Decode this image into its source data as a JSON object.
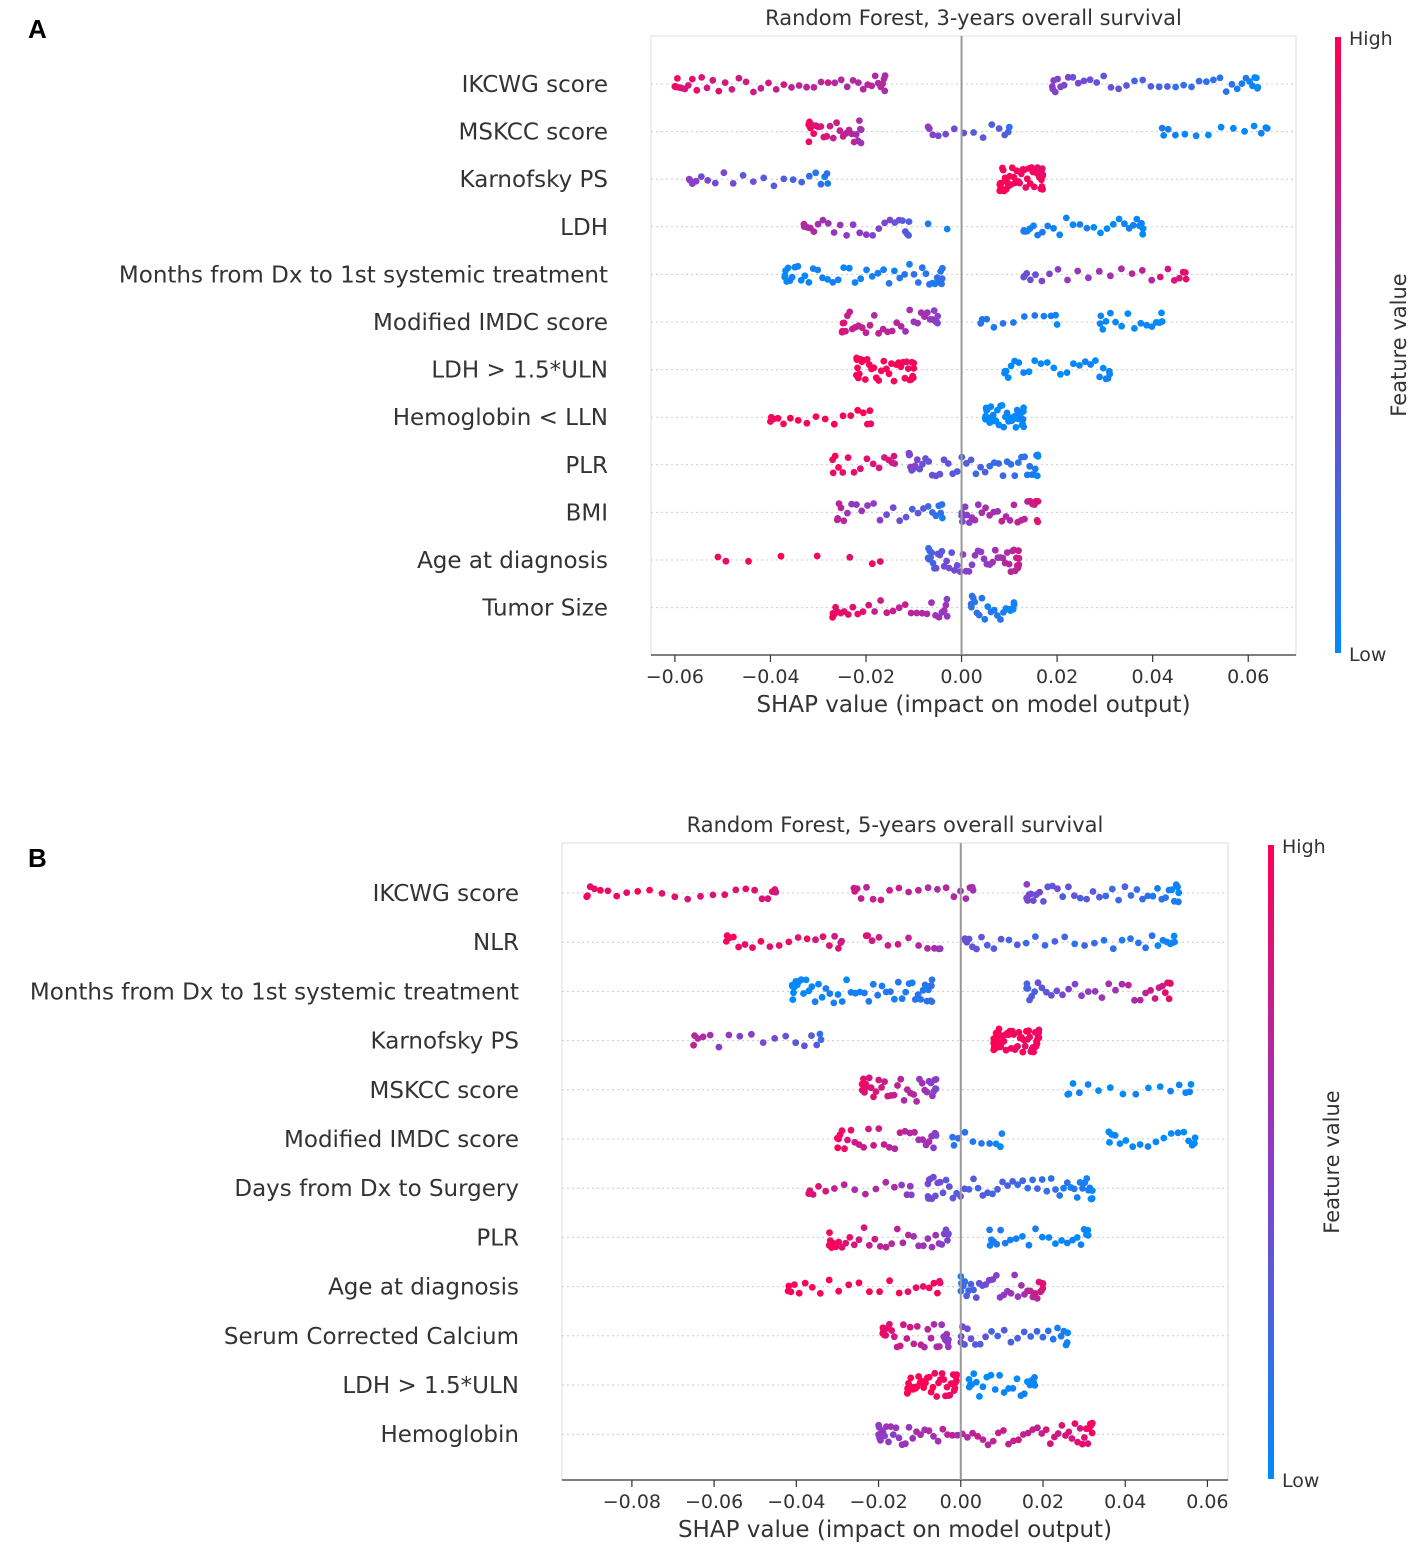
{
  "panels": [
    {
      "letter": "A"
    },
    {
      "letter": "B"
    }
  ],
  "colors": {
    "high": "#ff0052",
    "mid": "#8a3ec8",
    "low": "#008bfb"
  },
  "chart_data": [
    {
      "type": "scatter",
      "subtype": "shap-beeswarm",
      "title": "Random Forest, 3-years overall survival",
      "xlabel": "SHAP value (impact on model output)",
      "xlim": [
        -0.065,
        0.07
      ],
      "xticks": [
        -0.06,
        -0.04,
        -0.02,
        0.0,
        0.02,
        0.04,
        0.06
      ],
      "xtick_labels": [
        "−0.06",
        "−0.04",
        "−0.02",
        "0.00",
        "0.02",
        "0.04",
        "0.06"
      ],
      "colorbar": {
        "label": "Feature value",
        "high": "High",
        "low": "Low"
      },
      "features": [
        {
          "name": "IKCWG score",
          "groups": [
            {
              "min": -0.06,
              "max": -0.016,
              "n": 44,
              "c0": 0.9,
              "c1": 0.62
            },
            {
              "min": 0.019,
              "max": 0.062,
              "n": 40,
              "c0": 0.5,
              "c1": 0.02
            }
          ]
        },
        {
          "name": "MSKCC score",
          "groups": [
            {
              "min": -0.032,
              "max": -0.021,
              "n": 26,
              "c0": 0.95,
              "c1": 0.6
            },
            {
              "min": -0.007,
              "max": 0.01,
              "n": 14,
              "c0": 0.48,
              "c1": 0.2
            },
            {
              "min": 0.042,
              "max": 0.064,
              "n": 14,
              "c0": 0.05,
              "c1": 0.0
            }
          ]
        },
        {
          "name": "Karnofsky PS",
          "groups": [
            {
              "min": -0.057,
              "max": -0.028,
              "n": 22,
              "c0": 0.55,
              "c1": 0.1
            },
            {
              "min": 0.008,
              "max": 0.017,
              "n": 45,
              "c0": 1.0,
              "c1": 0.93
            }
          ]
        },
        {
          "name": "LDH",
          "groups": [
            {
              "min": -0.033,
              "max": -0.011,
              "n": 26,
              "c0": 0.7,
              "c1": 0.3
            },
            {
              "min": -0.007,
              "max": -0.003,
              "n": 2,
              "c0": 0.1,
              "c1": 0.05
            },
            {
              "min": 0.013,
              "max": 0.038,
              "n": 28,
              "c0": 0.12,
              "c1": 0.0
            }
          ]
        },
        {
          "name": "Months from Dx to 1st systemic treatment",
          "groups": [
            {
              "min": -0.037,
              "max": -0.004,
              "n": 44,
              "c0": 0.0,
              "c1": 0.15
            },
            {
              "min": 0.013,
              "max": 0.047,
              "n": 24,
              "c0": 0.3,
              "c1": 0.92
            }
          ]
        },
        {
          "name": "Modified IMDC score",
          "groups": [
            {
              "min": -0.025,
              "max": -0.005,
              "n": 34,
              "c0": 0.85,
              "c1": 0.5
            },
            {
              "min": 0.004,
              "max": 0.02,
              "n": 12,
              "c0": 0.15,
              "c1": 0.05
            },
            {
              "min": 0.029,
              "max": 0.042,
              "n": 16,
              "c0": 0.02,
              "c1": 0.0
            }
          ]
        },
        {
          "name": "LDH > 1.5*ULN",
          "groups": [
            {
              "min": -0.022,
              "max": -0.01,
              "n": 36,
              "c0": 1.0,
              "c1": 0.95
            },
            {
              "min": 0.009,
              "max": 0.031,
              "n": 26,
              "c0": 0.0,
              "c1": 0.02
            }
          ]
        },
        {
          "name": "Hemoglobin < LLN",
          "groups": [
            {
              "min": -0.04,
              "max": -0.019,
              "n": 18,
              "c0": 1.0,
              "c1": 0.95
            },
            {
              "min": 0.005,
              "max": 0.013,
              "n": 38,
              "c0": 0.0,
              "c1": 0.03
            }
          ]
        },
        {
          "name": "PLR",
          "groups": [
            {
              "min": -0.027,
              "max": -0.014,
              "n": 16,
              "c0": 0.95,
              "c1": 0.75
            },
            {
              "min": -0.011,
              "max": 0.016,
              "n": 44,
              "c0": 0.5,
              "c1": 0.05
            }
          ]
        },
        {
          "name": "BMI",
          "groups": [
            {
              "min": -0.026,
              "max": -0.004,
              "n": 26,
              "c0": 0.75,
              "c1": 0.1
            },
            {
              "min": 0.0,
              "max": 0.016,
              "n": 30,
              "c0": 0.45,
              "c1": 0.85
            }
          ]
        },
        {
          "name": "Age at diagnosis",
          "groups": [
            {
              "min": -0.051,
              "max": -0.017,
              "n": 8,
              "c0": 1.0,
              "c1": 0.9
            },
            {
              "min": -0.007,
              "max": 0.012,
              "n": 48,
              "c0": 0.2,
              "c1": 0.8
            }
          ]
        },
        {
          "name": "Tumor Size",
          "groups": [
            {
              "min": -0.027,
              "max": -0.003,
              "n": 30,
              "c0": 1.0,
              "c1": 0.5
            },
            {
              "min": 0.002,
              "max": 0.011,
              "n": 22,
              "c0": 0.2,
              "c1": 0.02
            }
          ]
        }
      ]
    },
    {
      "type": "scatter",
      "subtype": "shap-beeswarm",
      "title": "Random Forest, 5-years overall survival",
      "xlabel": "SHAP value (impact on model output)",
      "xlim": [
        -0.097,
        0.065
      ],
      "xticks": [
        -0.08,
        -0.06,
        -0.04,
        -0.02,
        0.0,
        0.02,
        0.04,
        0.06
      ],
      "xtick_labels": [
        "−0.08",
        "−0.06",
        "−0.04",
        "−0.02",
        "0.00",
        "0.02",
        "0.04",
        "0.06"
      ],
      "colorbar": {
        "label": "Feature value",
        "high": "High",
        "low": "Low"
      },
      "features": [
        {
          "name": "IKCWG score",
          "groups": [
            {
              "min": -0.091,
              "max": -0.045,
              "n": 24,
              "c0": 0.95,
              "c1": 0.85
            },
            {
              "min": -0.026,
              "max": 0.003,
              "n": 20,
              "c0": 0.8,
              "c1": 0.6
            },
            {
              "min": 0.016,
              "max": 0.053,
              "n": 38,
              "c0": 0.5,
              "c1": 0.02
            }
          ]
        },
        {
          "name": "NLR",
          "groups": [
            {
              "min": -0.057,
              "max": -0.029,
              "n": 20,
              "c0": 1.0,
              "c1": 0.8
            },
            {
              "min": -0.023,
              "max": -0.005,
              "n": 12,
              "c0": 0.85,
              "c1": 0.6
            },
            {
              "min": 0.001,
              "max": 0.052,
              "n": 34,
              "c0": 0.4,
              "c1": 0.02
            }
          ]
        },
        {
          "name": "Months from Dx to 1st systemic treatment",
          "groups": [
            {
              "min": -0.041,
              "max": -0.007,
              "n": 50,
              "c0": 0.0,
              "c1": 0.15
            },
            {
              "min": 0.016,
              "max": 0.051,
              "n": 34,
              "c0": 0.2,
              "c1": 0.92
            }
          ]
        },
        {
          "name": "Karnofsky PS",
          "groups": [
            {
              "min": -0.065,
              "max": -0.034,
              "n": 18,
              "c0": 0.7,
              "c1": 0.2
            },
            {
              "min": 0.008,
              "max": 0.019,
              "n": 55,
              "c0": 1.0,
              "c1": 0.92
            }
          ]
        },
        {
          "name": "MSKCC score",
          "groups": [
            {
              "min": -0.024,
              "max": -0.006,
              "n": 36,
              "c0": 0.95,
              "c1": 0.45
            },
            {
              "min": 0.026,
              "max": 0.056,
              "n": 16,
              "c0": 0.05,
              "c1": 0.0
            }
          ]
        },
        {
          "name": "Modified IMDC score",
          "groups": [
            {
              "min": -0.03,
              "max": -0.006,
              "n": 30,
              "c0": 0.95,
              "c1": 0.5
            },
            {
              "min": -0.002,
              "max": 0.01,
              "n": 10,
              "c0": 0.2,
              "c1": 0.05
            },
            {
              "min": 0.036,
              "max": 0.057,
              "n": 18,
              "c0": 0.02,
              "c1": 0.0
            }
          ]
        },
        {
          "name": "Days from Dx to Surgery",
          "groups": [
            {
              "min": -0.037,
              "max": -0.012,
              "n": 16,
              "c0": 0.85,
              "c1": 0.5
            },
            {
              "min": -0.008,
              "max": 0.032,
              "n": 52,
              "c0": 0.45,
              "c1": 0.0
            }
          ]
        },
        {
          "name": "PLR",
          "groups": [
            {
              "min": -0.032,
              "max": -0.003,
              "n": 34,
              "c0": 1.0,
              "c1": 0.45
            },
            {
              "min": 0.007,
              "max": 0.031,
              "n": 24,
              "c0": 0.1,
              "c1": 0.0
            }
          ]
        },
        {
          "name": "Age at diagnosis",
          "groups": [
            {
              "min": -0.042,
              "max": -0.005,
              "n": 24,
              "c0": 1.0,
              "c1": 0.9
            },
            {
              "min": 0.0,
              "max": 0.02,
              "n": 36,
              "c0": 0.1,
              "c1": 0.9
            }
          ]
        },
        {
          "name": "Serum Corrected Calcium",
          "groups": [
            {
              "min": -0.019,
              "max": -0.003,
              "n": 30,
              "c0": 0.95,
              "c1": 0.5
            },
            {
              "min": 0.0,
              "max": 0.026,
              "n": 26,
              "c0": 0.45,
              "c1": 0.02
            }
          ]
        },
        {
          "name": "LDH > 1.5*ULN",
          "groups": [
            {
              "min": -0.013,
              "max": -0.001,
              "n": 42,
              "c0": 1.0,
              "c1": 0.95
            },
            {
              "min": 0.002,
              "max": 0.018,
              "n": 24,
              "c0": 0.0,
              "c1": 0.02
            }
          ]
        },
        {
          "name": "Hemoglobin",
          "groups": [
            {
              "min": -0.02,
              "max": 0.032,
              "n": 66,
              "c0": 0.5,
              "c1": 0.92
            }
          ]
        }
      ]
    }
  ]
}
